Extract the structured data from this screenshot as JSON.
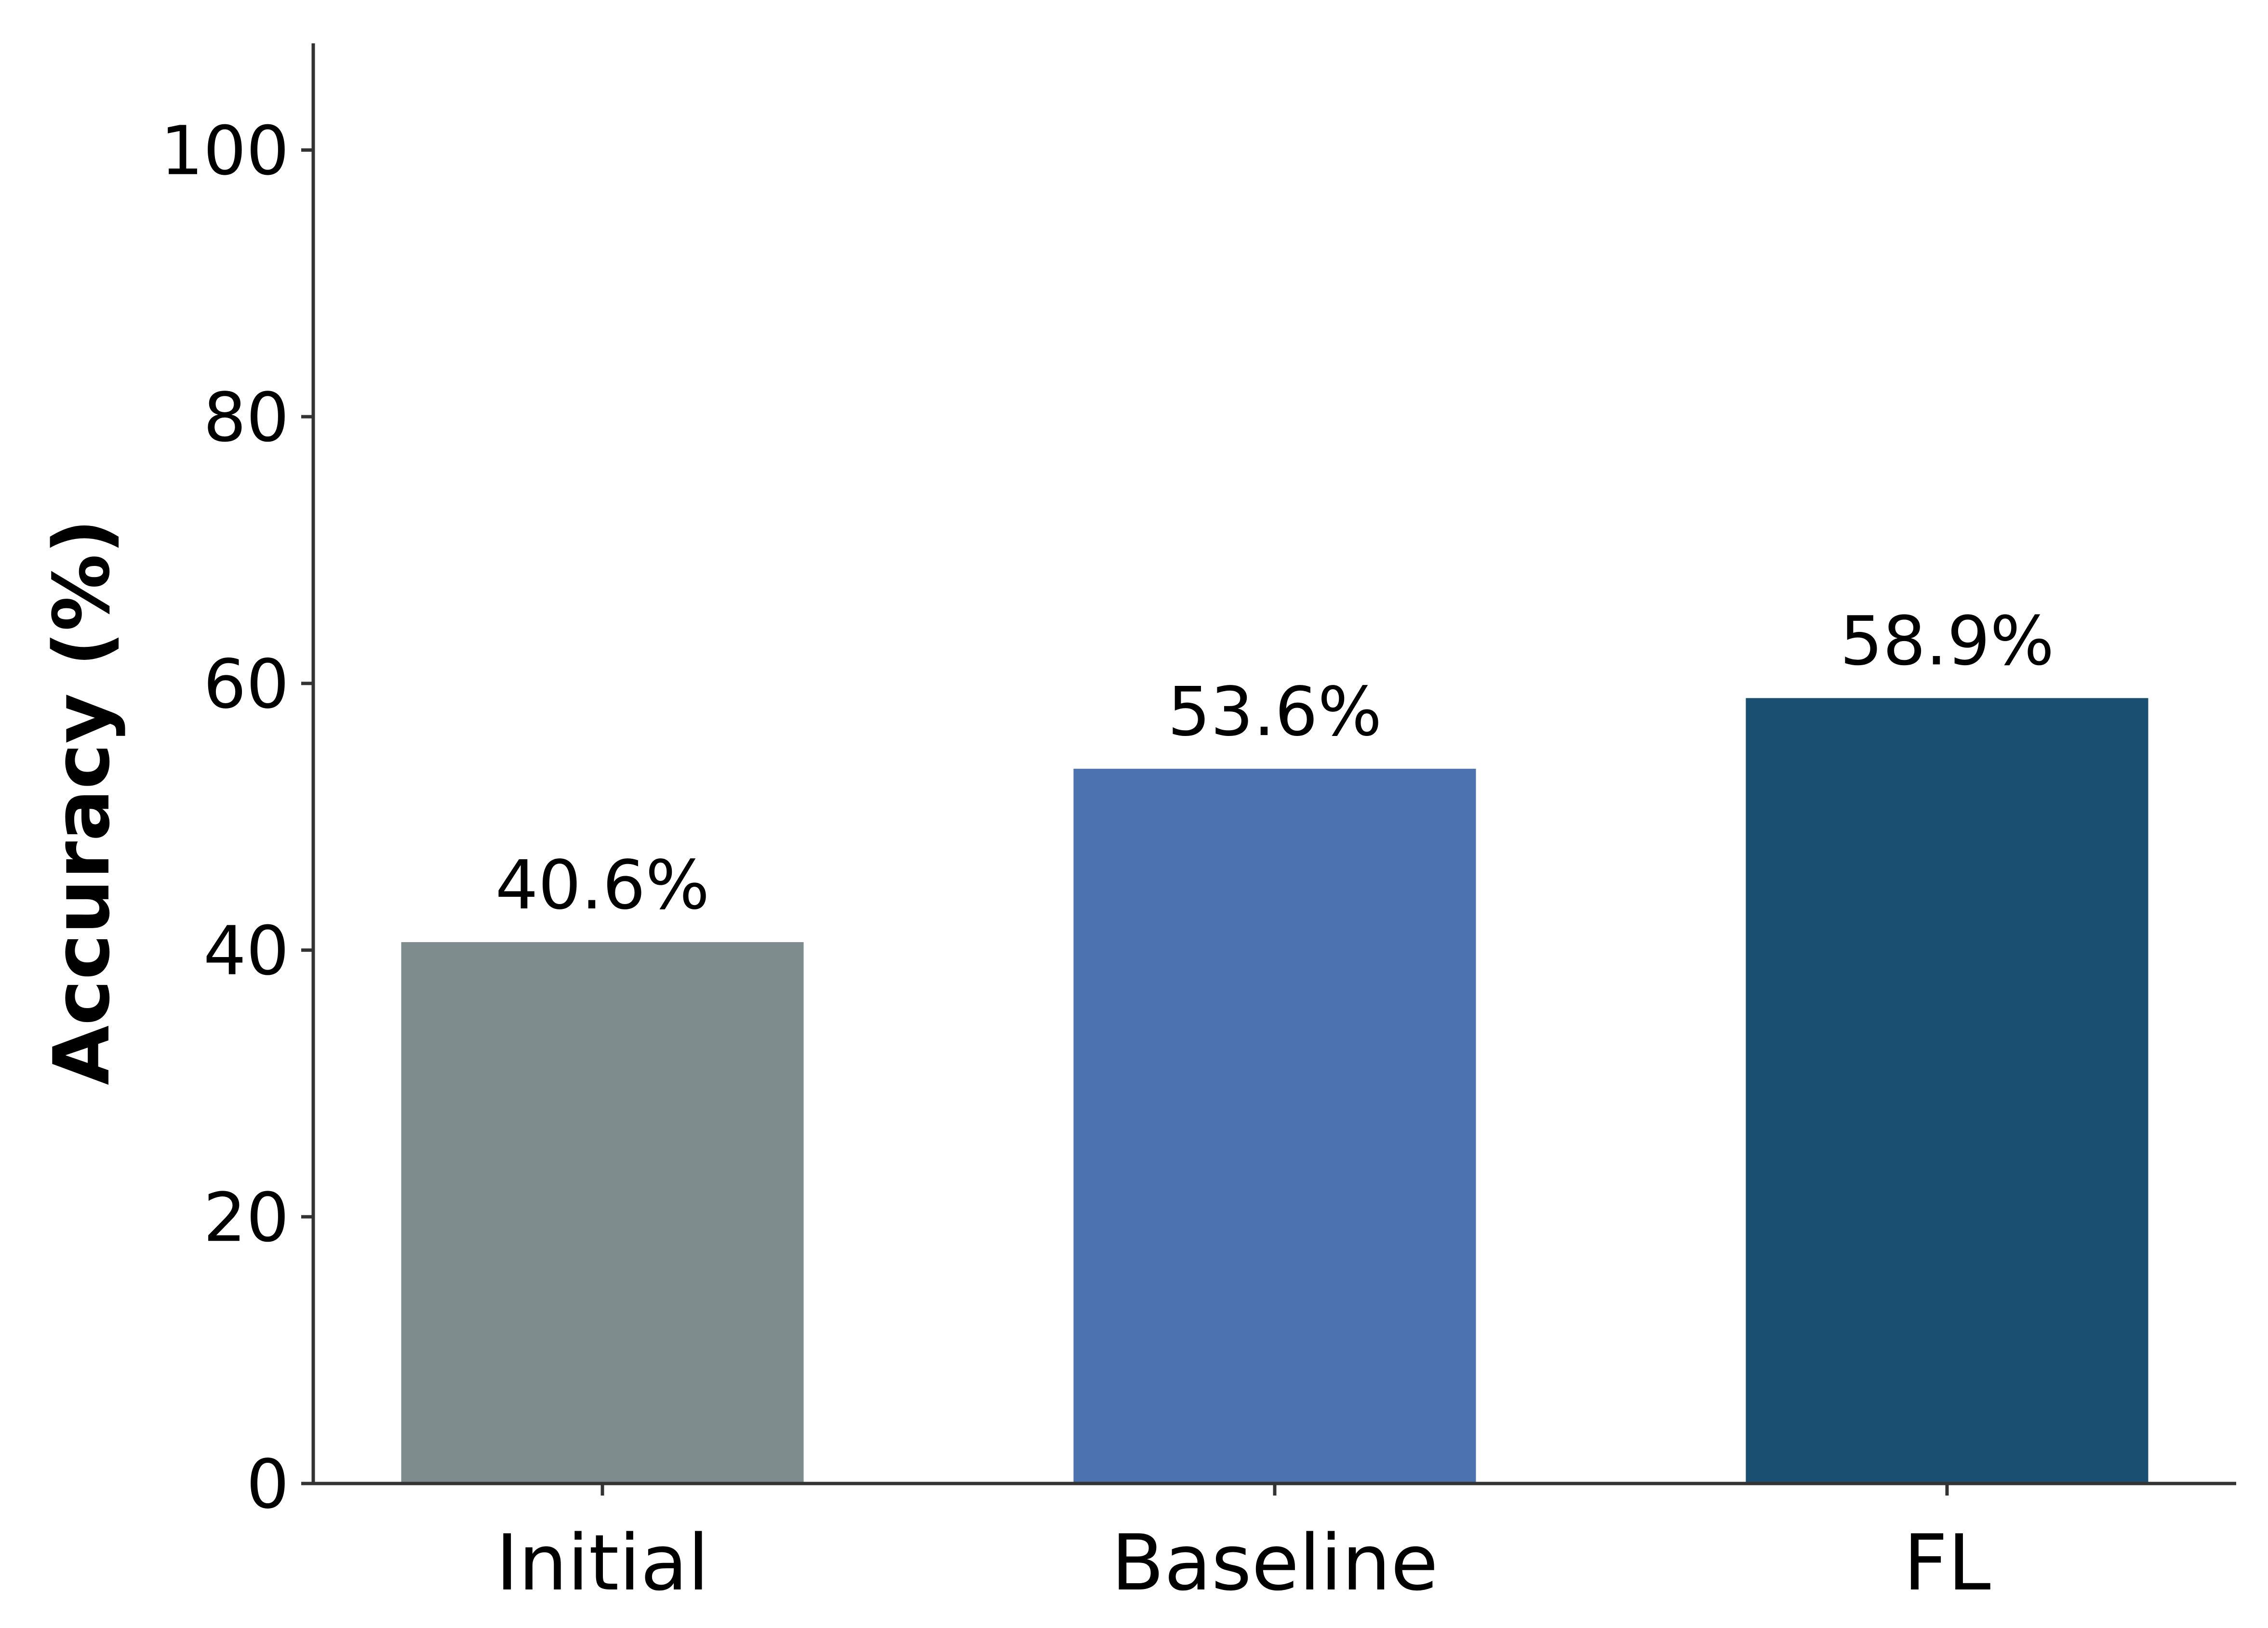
{
  "chart_data": {
    "type": "bar",
    "categories": [
      "Initial",
      "Baseline",
      "FL"
    ],
    "values": [
      40.6,
      53.6,
      58.9
    ],
    "data_labels": [
      "40.6%",
      "53.6%",
      "58.9%"
    ],
    "colors": [
      "#7f8c8d",
      "#4c72b0",
      "#1b4f72"
    ],
    "title": "",
    "xlabel": "",
    "ylabel": "Accuracy (%)",
    "ylim": [
      0,
      108
    ],
    "yticks": [
      0,
      20,
      40,
      60,
      80,
      100
    ],
    "ytick_labels": [
      "0",
      "20",
      "40",
      "60",
      "80",
      "100"
    ],
    "grid": false,
    "spines": [
      "left",
      "bottom"
    ]
  }
}
